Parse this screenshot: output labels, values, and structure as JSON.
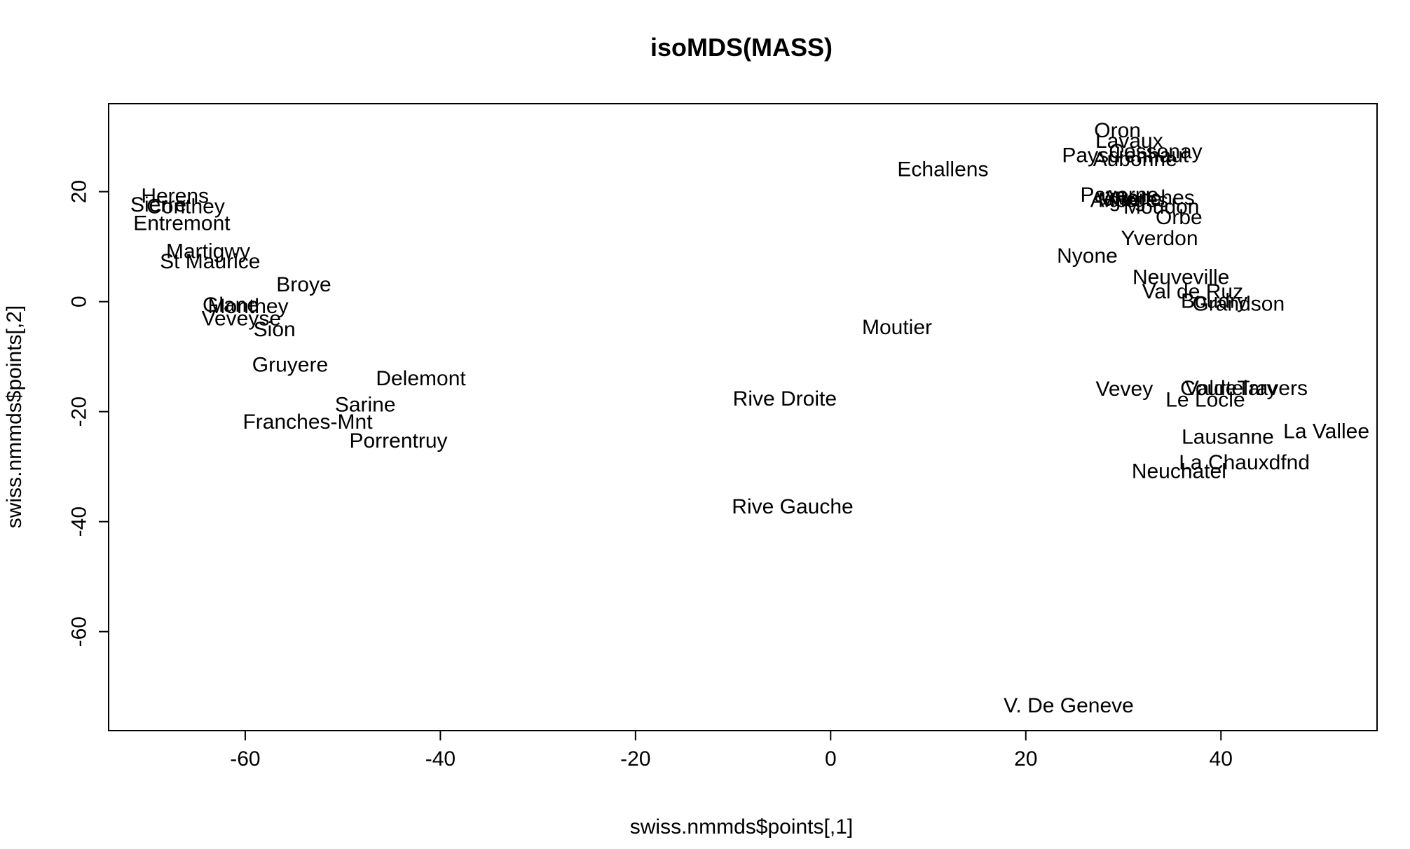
{
  "chart_data": {
    "type": "scatter",
    "title": "isoMDS(MASS)",
    "xlabel": "swiss.nmmds$points[,1]",
    "ylabel": "swiss.nmmds$points[,2]",
    "xlim": [
      -74,
      56
    ],
    "ylim": [
      -78,
      36
    ],
    "xticks": [
      -60,
      -40,
      -20,
      0,
      20,
      40
    ],
    "yticks": [
      -60,
      -40,
      -20,
      0,
      20
    ],
    "grid": false,
    "legend": "none",
    "marker": "text labels",
    "points": [
      {
        "label": "Courtelary",
        "x": 40.8,
        "y": -15.8
      },
      {
        "label": "Delemont",
        "x": -42.0,
        "y": -14.0
      },
      {
        "label": "Franches-Mnt",
        "x": -53.6,
        "y": -21.9
      },
      {
        "label": "Moutier",
        "x": 6.8,
        "y": -4.7
      },
      {
        "label": "Neuveville",
        "x": 35.9,
        "y": 4.4
      },
      {
        "label": "Porrentruy",
        "x": -44.3,
        "y": -25.3
      },
      {
        "label": "Broye",
        "x": -54.0,
        "y": 3.1
      },
      {
        "label": "Glane",
        "x": -61.5,
        "y": -0.6
      },
      {
        "label": "Gruyere",
        "x": -55.4,
        "y": -11.5
      },
      {
        "label": "Sarine",
        "x": -47.7,
        "y": -18.8
      },
      {
        "label": "Veveyse",
        "x": -60.4,
        "y": -3.1
      },
      {
        "label": "Aigle",
        "x": 29.0,
        "y": 18.4
      },
      {
        "label": "Aubonne",
        "x": 31.2,
        "y": 25.9
      },
      {
        "label": "Avenches",
        "x": 32.6,
        "y": 18.9
      },
      {
        "label": "Cossonay",
        "x": 33.3,
        "y": 27.3
      },
      {
        "label": "Echallens",
        "x": 11.5,
        "y": 24.0
      },
      {
        "label": "Grandson",
        "x": 41.8,
        "y": -0.4
      },
      {
        "label": "Lausanne",
        "x": 40.7,
        "y": -24.6
      },
      {
        "label": "La Vallee",
        "x": 50.8,
        "y": -23.6
      },
      {
        "label": "Lavaux",
        "x": 30.6,
        "y": 29.2
      },
      {
        "label": "Morges",
        "x": 31.0,
        "y": 18.4
      },
      {
        "label": "Moudon",
        "x": 33.9,
        "y": 17.2
      },
      {
        "label": "Nyone",
        "x": 26.3,
        "y": 8.3
      },
      {
        "label": "Orbe",
        "x": 35.7,
        "y": 15.3
      },
      {
        "label": "Oron",
        "x": 29.4,
        "y": 31.1
      },
      {
        "label": "Payerne",
        "x": 29.6,
        "y": 19.4
      },
      {
        "label": "Paysd'enhaut",
        "x": 30.2,
        "y": 26.6
      },
      {
        "label": "Rolle",
        "x": 31.5,
        "y": 18.6
      },
      {
        "label": "Vevey",
        "x": 30.1,
        "y": -15.9
      },
      {
        "label": "Yverdon",
        "x": 33.7,
        "y": 11.5
      },
      {
        "label": "Conthey",
        "x": -66.1,
        "y": 17.3
      },
      {
        "label": "Entremont",
        "x": -66.5,
        "y": 14.2
      },
      {
        "label": "Herens",
        "x": -67.2,
        "y": 19.2
      },
      {
        "label": "Martigwy",
        "x": -63.8,
        "y": 9.1
      },
      {
        "label": "Monthey",
        "x": -59.7,
        "y": -0.9
      },
      {
        "label": "St Maurice",
        "x": -63.6,
        "y": 7.3
      },
      {
        "label": "Sierre",
        "x": -68.9,
        "y": 17.6
      },
      {
        "label": "Sion",
        "x": -57.0,
        "y": -5.1
      },
      {
        "label": "Boudry",
        "x": 39.3,
        "y": 0.1
      },
      {
        "label": "La Chauxdfnd",
        "x": 42.4,
        "y": -29.3
      },
      {
        "label": "Le Locle",
        "x": 38.4,
        "y": -17.9
      },
      {
        "label": "Neuchatel",
        "x": 35.7,
        "y": -30.9
      },
      {
        "label": "Val de Ruz",
        "x": 37.1,
        "y": 1.8
      },
      {
        "label": "ValdeTravers",
        "x": 42.6,
        "y": -15.8
      },
      {
        "label": "V. De Geneve",
        "x": 24.4,
        "y": -73.5
      },
      {
        "label": "Rive Droite",
        "x": -4.7,
        "y": -17.7
      },
      {
        "label": "Rive Gauche",
        "x": -3.9,
        "y": -37.3
      }
    ]
  }
}
